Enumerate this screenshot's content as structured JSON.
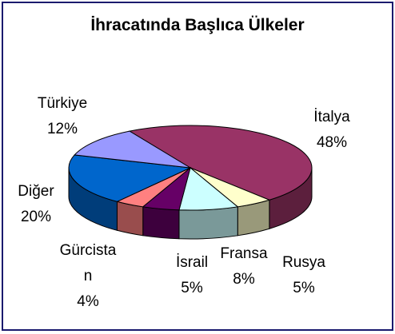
{
  "chart_data": {
    "type": "pie3d",
    "title": "İhracatında Başlıca Ülkeler",
    "categories": [
      "İtalya",
      "Rusya",
      "Fransa",
      "İsrail",
      "Gürcistan",
      "Diğer",
      "Türkiye"
    ],
    "values": [
      48,
      5,
      8,
      5,
      4,
      20,
      12
    ],
    "value_labels": [
      "48%",
      "5%",
      "8%",
      "5%",
      "4%",
      "20%",
      "12%"
    ],
    "colors": [
      "#993366",
      "#FFFFCC",
      "#CCFFFF",
      "#660066",
      "#FF8080",
      "#0066CC",
      "#9999FF"
    ]
  }
}
